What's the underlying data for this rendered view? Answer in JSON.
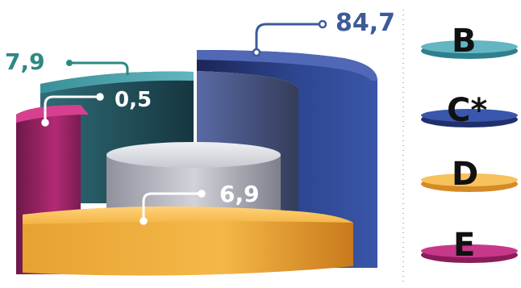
{
  "chart_data": {
    "type": "pie",
    "title": "",
    "legend_position": "right",
    "series": [
      {
        "name": "B",
        "label": "7,9",
        "value": 7.9,
        "color": "#3f8c95"
      },
      {
        "name": "C*",
        "label": "84,7",
        "value": 84.7,
        "color": "#2d3f85"
      },
      {
        "name": "D",
        "label": "6,9",
        "value": 6.9,
        "color": "#f1ab37"
      },
      {
        "name": "E",
        "label": "0,5",
        "value": 0.5,
        "color": "#b32a74"
      }
    ],
    "extra_labels": {
      "gray_center": "6,9",
      "teal_inner": "0,5"
    }
  }
}
